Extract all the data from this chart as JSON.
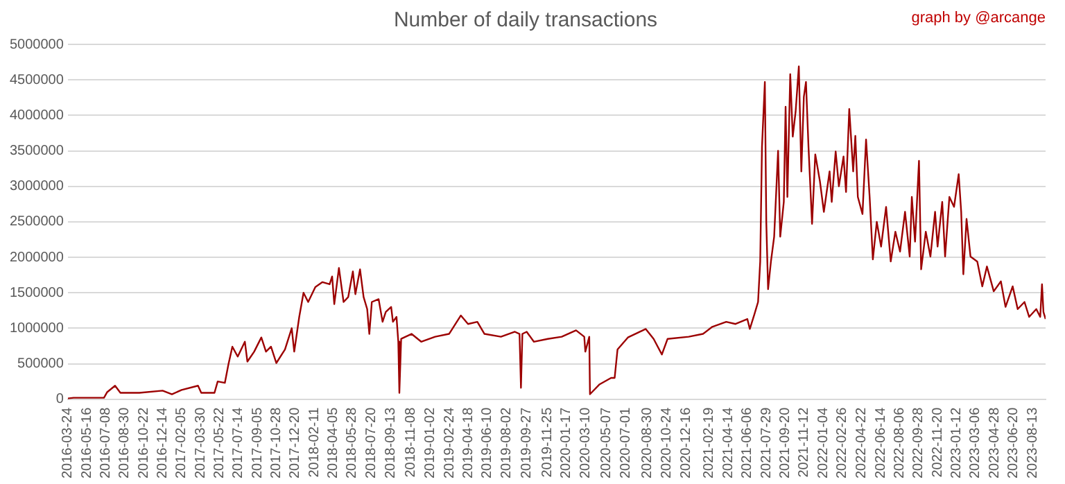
{
  "chart_data": {
    "type": "line",
    "title": "Number of daily transactions",
    "annotations": [
      "graph by @arcange"
    ],
    "x": [
      "2016-03-24",
      "2016-04-09",
      "2016-07-03",
      "2016-07-12",
      "2016-08-03",
      "2016-08-18",
      "2016-10-10",
      "2016-12-14",
      "2017-01-09",
      "2017-02-05",
      "2017-03-23",
      "2017-04-01",
      "2017-05-08",
      "2017-05-17",
      "2017-06-06",
      "2017-06-16",
      "2017-06-27",
      "2017-07-12",
      "2017-08-01",
      "2017-08-08",
      "2017-08-27",
      "2017-09-16",
      "2017-09-29",
      "2017-10-13",
      "2017-10-28",
      "2017-11-21",
      "2017-12-10",
      "2017-12-17",
      "2017-12-31",
      "2018-01-12",
      "2018-01-25",
      "2018-02-14",
      "2018-03-06",
      "2018-03-26",
      "2018-04-02",
      "2018-04-08",
      "2018-04-21",
      "2018-05-04",
      "2018-05-17",
      "2018-05-30",
      "2018-06-06",
      "2018-06-19",
      "2018-06-29",
      "2018-07-09",
      "2018-07-15",
      "2018-07-22",
      "2018-08-10",
      "2018-08-21",
      "2018-08-30",
      "2018-09-14",
      "2018-09-19",
      "2018-09-29",
      "2018-10-04",
      "2018-10-07",
      "2018-10-12",
      "2018-11-10",
      "2018-12-07",
      "2019-01-15",
      "2019-02-23",
      "2019-03-28",
      "2019-04-17",
      "2019-05-13",
      "2019-06-02",
      "2019-07-18",
      "2019-08-26",
      "2019-09-08",
      "2019-09-12",
      "2019-09-16",
      "2019-09-28",
      "2019-10-18",
      "2019-11-26",
      "2020-01-04",
      "2020-02-13",
      "2020-03-07",
      "2020-03-10",
      "2020-03-21",
      "2020-03-23",
      "2020-04-19",
      "2020-05-21",
      "2020-05-31",
      "2020-06-08",
      "2020-07-07",
      "2020-08-26",
      "2020-09-17",
      "2020-10-10",
      "2020-10-26",
      "2020-12-24",
      "2021-02-02",
      "2021-02-28",
      "2021-04-08",
      "2021-05-04",
      "2021-06-06",
      "2021-06-13",
      "2021-06-26",
      "2021-07-06",
      "2021-07-12",
      "2021-07-17",
      "2021-07-25",
      "2021-07-29",
      "2021-08-03",
      "2021-08-11",
      "2021-08-20",
      "2021-08-31",
      "2021-09-06",
      "2021-09-16",
      "2021-09-21",
      "2021-09-26",
      "2021-10-04",
      "2021-10-11",
      "2021-10-19",
      "2021-10-28",
      "2021-11-04",
      "2021-11-11",
      "2021-11-17",
      "2021-11-24",
      "2021-12-04",
      "2021-12-13",
      "2021-12-26",
      "2022-01-06",
      "2022-01-22",
      "2022-01-28",
      "2022-02-08",
      "2022-02-17",
      "2022-03-02",
      "2022-03-09",
      "2022-03-18",
      "2022-03-29",
      "2022-04-04",
      "2022-04-11",
      "2022-04-24",
      "2022-05-04",
      "2022-05-14",
      "2022-05-23",
      "2022-06-03",
      "2022-06-15",
      "2022-06-29",
      "2022-07-12",
      "2022-07-25",
      "2022-08-07",
      "2022-08-21",
      "2022-09-03",
      "2022-09-09",
      "2022-09-18",
      "2022-09-29",
      "2022-10-05",
      "2022-10-18",
      "2022-10-31",
      "2022-11-13",
      "2022-11-20",
      "2022-12-03",
      "2022-12-11",
      "2022-12-23",
      "2023-01-05",
      "2023-01-18",
      "2023-01-25",
      "2023-01-31",
      "2023-02-09",
      "2023-02-20",
      "2023-03-11",
      "2023-03-25",
      "2023-04-07",
      "2023-04-26",
      "2023-05-16",
      "2023-05-29",
      "2023-06-18",
      "2023-07-02",
      "2023-07-21",
      "2023-08-03",
      "2023-08-23",
      "2023-09-03",
      "2023-09-08",
      "2023-09-12",
      "2023-09-18"
    ],
    "series": [
      {
        "color": "#9c0000",
        "values": [
          10000,
          20000,
          20000,
          100000,
          190000,
          90000,
          90000,
          120000,
          70000,
          130000,
          190000,
          90000,
          90000,
          250000,
          230000,
          490000,
          740000,
          600000,
          810000,
          530000,
          670000,
          870000,
          670000,
          740000,
          510000,
          700000,
          1000000,
          670000,
          1160000,
          1500000,
          1370000,
          1580000,
          1650000,
          1620000,
          1730000,
          1340000,
          1850000,
          1370000,
          1440000,
          1800000,
          1480000,
          1830000,
          1440000,
          1270000,
          920000,
          1370000,
          1410000,
          1090000,
          1230000,
          1300000,
          1090000,
          1160000,
          810000,
          90000,
          850000,
          920000,
          810000,
          880000,
          920000,
          1180000,
          1060000,
          1090000,
          920000,
          880000,
          950000,
          920000,
          160000,
          920000,
          950000,
          810000,
          850000,
          880000,
          970000,
          880000,
          670000,
          880000,
          70000,
          210000,
          300000,
          300000,
          700000,
          870000,
          990000,
          850000,
          630000,
          850000,
          880000,
          920000,
          1020000,
          1090000,
          1060000,
          1130000,
          990000,
          1200000,
          1370000,
          1940000,
          3560000,
          4470000,
          2500000,
          1550000,
          1940000,
          2290000,
          3500000,
          2290000,
          2780000,
          4120000,
          2850000,
          4580000,
          3700000,
          4050000,
          4690000,
          3210000,
          4260000,
          4470000,
          3560000,
          2470000,
          3450000,
          3070000,
          2640000,
          3210000,
          2780000,
          3490000,
          3000000,
          3420000,
          2920000,
          4090000,
          3210000,
          3710000,
          2850000,
          2610000,
          3660000,
          2850000,
          1970000,
          2500000,
          2150000,
          2710000,
          1940000,
          2360000,
          2080000,
          2640000,
          2010000,
          2850000,
          2220000,
          3360000,
          1830000,
          2360000,
          2010000,
          2640000,
          2150000,
          2780000,
          2010000,
          2850000,
          2710000,
          3170000,
          2640000,
          1760000,
          2540000,
          2010000,
          1940000,
          1590000,
          1870000,
          1520000,
          1660000,
          1300000,
          1590000,
          1270000,
          1370000,
          1160000,
          1270000,
          1160000,
          1620000,
          1230000,
          1130000
        ]
      }
    ],
    "xlim": [
      "2016-03-24",
      "2023-09-18"
    ],
    "xticks": [
      "2016-03-24",
      "2016-05-16",
      "2016-07-08",
      "2016-08-30",
      "2016-10-22",
      "2016-12-14",
      "2017-02-05",
      "2017-03-30",
      "2017-05-22",
      "2017-07-14",
      "2017-09-05",
      "2017-10-28",
      "2017-12-20",
      "2018-02-11",
      "2018-04-05",
      "2018-05-28",
      "2018-07-20",
      "2018-09-13",
      "2018-11-08",
      "2019-01-02",
      "2019-02-24",
      "2019-04-18",
      "2019-06-10",
      "2019-08-02",
      "2019-09-27",
      "2019-11-25",
      "2020-01-17",
      "2020-03-10",
      "2020-05-07",
      "2020-07-01",
      "2020-08-30",
      "2020-10-24",
      "2020-12-16",
      "2021-02-19",
      "2021-04-14",
      "2021-06-06",
      "2021-07-29",
      "2021-09-20",
      "2021-11-12",
      "2022-01-04",
      "2022-02-26",
      "2022-04-22",
      "2022-06-14",
      "2022-08-06",
      "2022-09-28",
      "2022-11-20",
      "2023-01-12",
      "2023-03-06",
      "2023-04-28",
      "2023-06-20",
      "2023-08-13"
    ],
    "ylim": [
      0,
      5000000
    ],
    "yticks": [
      0,
      500000,
      1000000,
      1500000,
      2000000,
      2500000,
      3000000,
      3500000,
      4000000,
      4500000,
      5000000
    ],
    "grid": "y",
    "legend": false,
    "marker": "none",
    "line_style": "solid"
  }
}
